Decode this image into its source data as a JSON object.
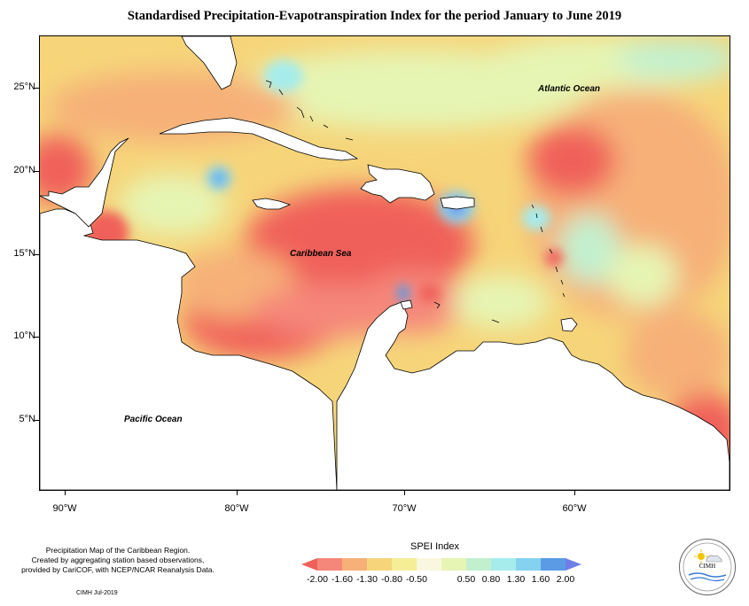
{
  "title": "Standardised Precipitation-Evapotranspiration Index for the period January to June 2019",
  "map": {
    "region": "Caribbean",
    "lat_ticks": [
      "25°N",
      "20°N",
      "15°N",
      "10°N",
      "5°N"
    ],
    "lon_ticks": [
      "90°W",
      "80°W",
      "70°W",
      "60°W"
    ],
    "labels": {
      "atlantic": "Atlantic Ocean",
      "caribbean": "Caribbean Sea",
      "pacific": "Pacific Ocean"
    }
  },
  "legend": {
    "title": "SPEI Index",
    "values": [
      "-2.00",
      "-1.60",
      "-1.30",
      "-0.80",
      "-0.50",
      "0.50",
      "0.80",
      "1.30",
      "1.60",
      "2.00"
    ],
    "colors": [
      "#f0605a",
      "#f5877a",
      "#f6b078",
      "#f6d57a",
      "#f6ee96",
      "#e6f5b4",
      "#c2f0cf",
      "#a6ecec",
      "#84d2f0",
      "#5b9be6",
      "#6f7fe8"
    ]
  },
  "credits": {
    "line1": "Precipitation Map of the Caribbean Region.",
    "line2": "Created by aggregating station based observations,",
    "line3": "provided by CariCOF, with NCEP/NCAR Reanalysis Data.",
    "date": "CIMH Jul-2019"
  },
  "logo": {
    "text": "CIMH",
    "icon": "cimh-logo-icon"
  }
}
